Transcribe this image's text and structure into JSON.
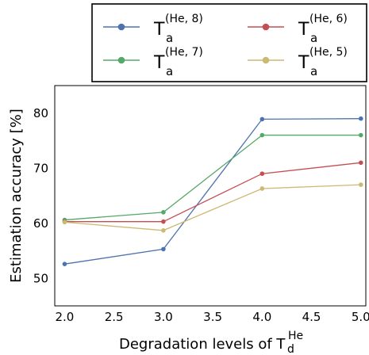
{
  "chart_data": {
    "type": "line",
    "x": [
      2.0,
      3.0,
      4.0,
      5.0
    ],
    "xlim": [
      1.9,
      5.05
    ],
    "ylim": [
      45,
      85
    ],
    "xticks": [
      "2.0",
      "2.5",
      "3.0",
      "3.5",
      "4.0",
      "4.5",
      "5.0"
    ],
    "xtick_values": [
      2.0,
      2.5,
      3.0,
      3.5,
      4.0,
      4.5,
      5.0
    ],
    "yticks": [
      "50",
      "60",
      "70",
      "80"
    ],
    "ytick_values": [
      50,
      60,
      70,
      80
    ],
    "ylabel": "Estimation accuracy [%]",
    "xlabel": {
      "main": "Degradation levels of T",
      "sub": "d",
      "sup": "He"
    },
    "grid": false,
    "legend_position": "top (outside plot, 2 columns)",
    "series": [
      {
        "name": "T_a^(He, 8)",
        "base": "T",
        "sub": "a",
        "sup": "(He, 8)",
        "color": "#4c72b0",
        "values": [
          52.6,
          55.3,
          78.9,
          79.0
        ]
      },
      {
        "name": "T_a^(He, 7)",
        "base": "T",
        "sub": "a",
        "sup": "(He, 7)",
        "color": "#55a868",
        "values": [
          60.6,
          62.0,
          76.0,
          76.0
        ]
      },
      {
        "name": "T_a^(He, 6)",
        "base": "T",
        "sub": "a",
        "sup": "(He, 6)",
        "color": "#c44e52",
        "values": [
          60.3,
          60.3,
          69.0,
          71.0
        ]
      },
      {
        "name": "T_a^(He, 5)",
        "base": "T",
        "sub": "a",
        "sup": "(He, 5)",
        "color": "#ccb974",
        "values": [
          60.2,
          58.7,
          66.3,
          67.0
        ]
      }
    ]
  }
}
